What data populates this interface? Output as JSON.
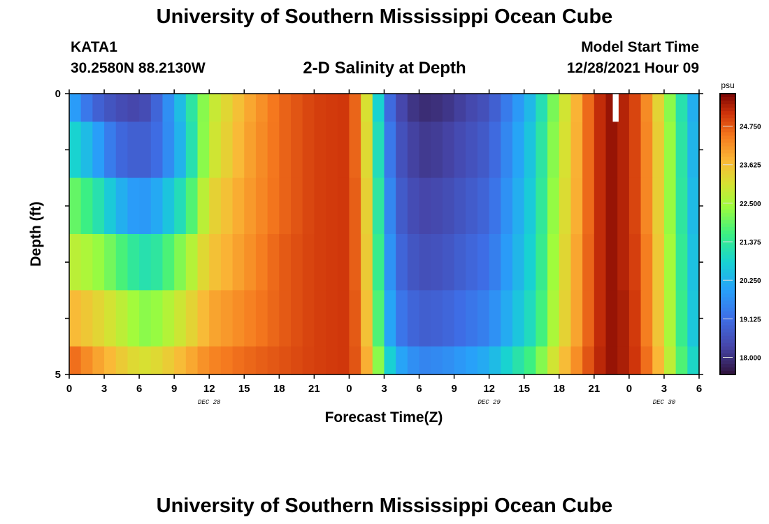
{
  "header": {
    "title": "University of Southern Mississippi Ocean Cube",
    "station_id": "KATA1",
    "station_coords": "30.2580N  88.2130W",
    "subtitle": "2-D Salinity at Depth",
    "model_start_label": "Model Start Time",
    "model_start_value": "12/28/2021 Hour 09"
  },
  "footer": {
    "title": "University of Southern Mississippi Ocean Cube"
  },
  "chart_data": {
    "type": "heatmap",
    "title": "2-D Salinity at Depth",
    "xlabel": "Forecast Time(Z)",
    "ylabel": "Depth (ft)",
    "colorbar_unit": "psu",
    "colorbar_ticks": [
      "18.000",
      "19.125",
      "20.250",
      "21.375",
      "22.500",
      "23.625",
      "24.750"
    ],
    "colorbar_range": [
      17.5,
      25.7
    ],
    "y_range": [
      0,
      5
    ],
    "y_tick_labels": [
      "0",
      "5"
    ],
    "x_range_hours": [
      0,
      54
    ],
    "x_tick_labels": [
      "0",
      "3",
      "6",
      "9",
      "12",
      "15",
      "18",
      "21",
      "0",
      "3",
      "6",
      "9",
      "12",
      "15",
      "18",
      "21",
      "0",
      "3",
      "6"
    ],
    "date_labels": [
      {
        "text": "DEC 28",
        "hour": 12
      },
      {
        "text": "DEC 29",
        "hour": 36
      },
      {
        "text": "DEC 30",
        "hour": 51
      }
    ],
    "depth_bands_ft": [
      0,
      0.5,
      1.5,
      2.5,
      3.5,
      4.5,
      5
    ],
    "hours": [
      0,
      2,
      4,
      5,
      6,
      7,
      8,
      10,
      12,
      15,
      18,
      21,
      24,
      25,
      26,
      27,
      28,
      30,
      32,
      36,
      40,
      42,
      44,
      45,
      46,
      46.5,
      48,
      49,
      50,
      51,
      52,
      53,
      54
    ],
    "salinity": [
      [
        20.2,
        19.0,
        18.5,
        18.4,
        18.3,
        18.6,
        19.3,
        20.8,
        22.7,
        23.8,
        24.6,
        25.0,
        25.1,
        24.2,
        22.0,
        19.6,
        18.5,
        17.9,
        18.0,
        18.6,
        20.6,
        22.6,
        24.2,
        25.0,
        25.4,
        25.5,
        25.2,
        24.7,
        23.8,
        22.8,
        21.7,
        20.6,
        19.8
      ],
      [
        21.0,
        20.2,
        19.1,
        18.9,
        18.8,
        18.9,
        19.3,
        20.6,
        22.8,
        23.9,
        24.6,
        25.0,
        25.1,
        24.2,
        22.2,
        19.9,
        18.7,
        18.1,
        18.2,
        18.8,
        20.8,
        22.7,
        24.2,
        25.0,
        25.4,
        25.5,
        25.2,
        24.7,
        23.9,
        22.9,
        21.8,
        20.7,
        19.9
      ],
      [
        22.1,
        21.4,
        20.4,
        20.0,
        19.8,
        19.9,
        20.3,
        21.3,
        23.2,
        24.0,
        24.6,
        25.0,
        25.1,
        24.3,
        22.4,
        20.2,
        18.9,
        18.3,
        18.4,
        19.0,
        20.9,
        22.8,
        24.2,
        25.0,
        25.4,
        25.5,
        25.2,
        24.7,
        23.9,
        22.9,
        21.8,
        20.8,
        20.0
      ],
      [
        22.8,
        22.5,
        21.9,
        21.5,
        21.2,
        21.1,
        21.5,
        22.4,
        23.5,
        24.1,
        24.7,
        25.0,
        25.1,
        24.3,
        22.6,
        20.4,
        19.1,
        18.5,
        18.6,
        19.2,
        21.0,
        22.9,
        24.3,
        25.0,
        25.4,
        25.5,
        25.2,
        24.8,
        24.0,
        23.0,
        21.9,
        20.9,
        20.1
      ],
      [
        23.8,
        23.4,
        22.9,
        22.6,
        22.3,
        22.2,
        22.5,
        23.1,
        23.9,
        24.3,
        24.7,
        25.0,
        25.1,
        24.4,
        22.8,
        20.7,
        19.4,
        18.8,
        18.9,
        19.5,
        21.2,
        23.0,
        24.3,
        25.0,
        25.4,
        25.5,
        25.3,
        24.8,
        24.0,
        23.1,
        22.0,
        21.0,
        20.2
      ],
      [
        24.7,
        24.1,
        23.6,
        23.3,
        23.1,
        23.1,
        23.3,
        23.8,
        24.3,
        24.6,
        24.8,
        25.0,
        25.1,
        24.5,
        23.2,
        21.3,
        20.2,
        19.5,
        19.6,
        20.2,
        21.8,
        23.4,
        24.5,
        25.1,
        25.4,
        25.5,
        25.3,
        24.9,
        24.2,
        23.3,
        22.2,
        21.3,
        20.5
      ]
    ],
    "missing_cells": [
      {
        "hour_start": 46.6,
        "hour_end": 47.1,
        "depth_start": 0,
        "depth_end": 0.5
      }
    ]
  }
}
